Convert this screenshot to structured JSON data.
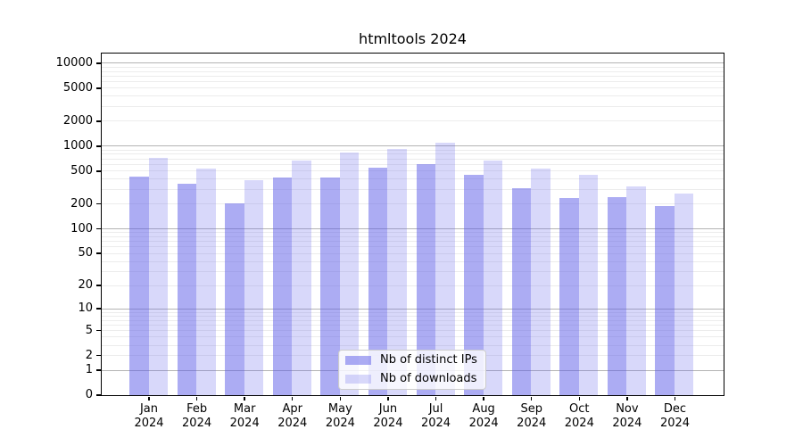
{
  "chart_data": {
    "type": "bar",
    "title": "htmltools 2024",
    "categories": [
      "Jan",
      "Feb",
      "Mar",
      "Apr",
      "May",
      "Jun",
      "Jul",
      "Aug",
      "Sep",
      "Oct",
      "Nov",
      "Dec"
    ],
    "year": "2024",
    "series": [
      {
        "name": "Nb of distinct IPs",
        "color": "rgba(90,90,232,0.5)",
        "values": [
          430,
          345,
          200,
          410,
          410,
          550,
          600,
          445,
          310,
          235,
          240,
          185
        ]
      },
      {
        "name": "Nb of downloads",
        "color": "rgba(100,100,235,0.25)",
        "values": [
          710,
          525,
          380,
          660,
          840,
          910,
          1100,
          660,
          525,
          450,
          325,
          265
        ]
      }
    ],
    "yscale": "log10(value+1)",
    "ylim": [
      0,
      10000
    ],
    "yticks": [
      0,
      1,
      2,
      5,
      10,
      20,
      50,
      100,
      200,
      500,
      1000,
      2000,
      5000,
      10000
    ],
    "major_grid_values": [
      1,
      10,
      100,
      1000,
      10000
    ],
    "grid": "major+minor",
    "legend_position": "lower-center-inside"
  },
  "colors": {
    "bar_distinct_ips": "rgba(90,90,232,0.5)",
    "bar_downloads": "rgba(100,100,235,0.25)",
    "grid_major": "#b4b4b4",
    "grid_minor": "#ececec",
    "spine": "#000000",
    "legend_border": "#cccccc",
    "text": "#000000"
  }
}
